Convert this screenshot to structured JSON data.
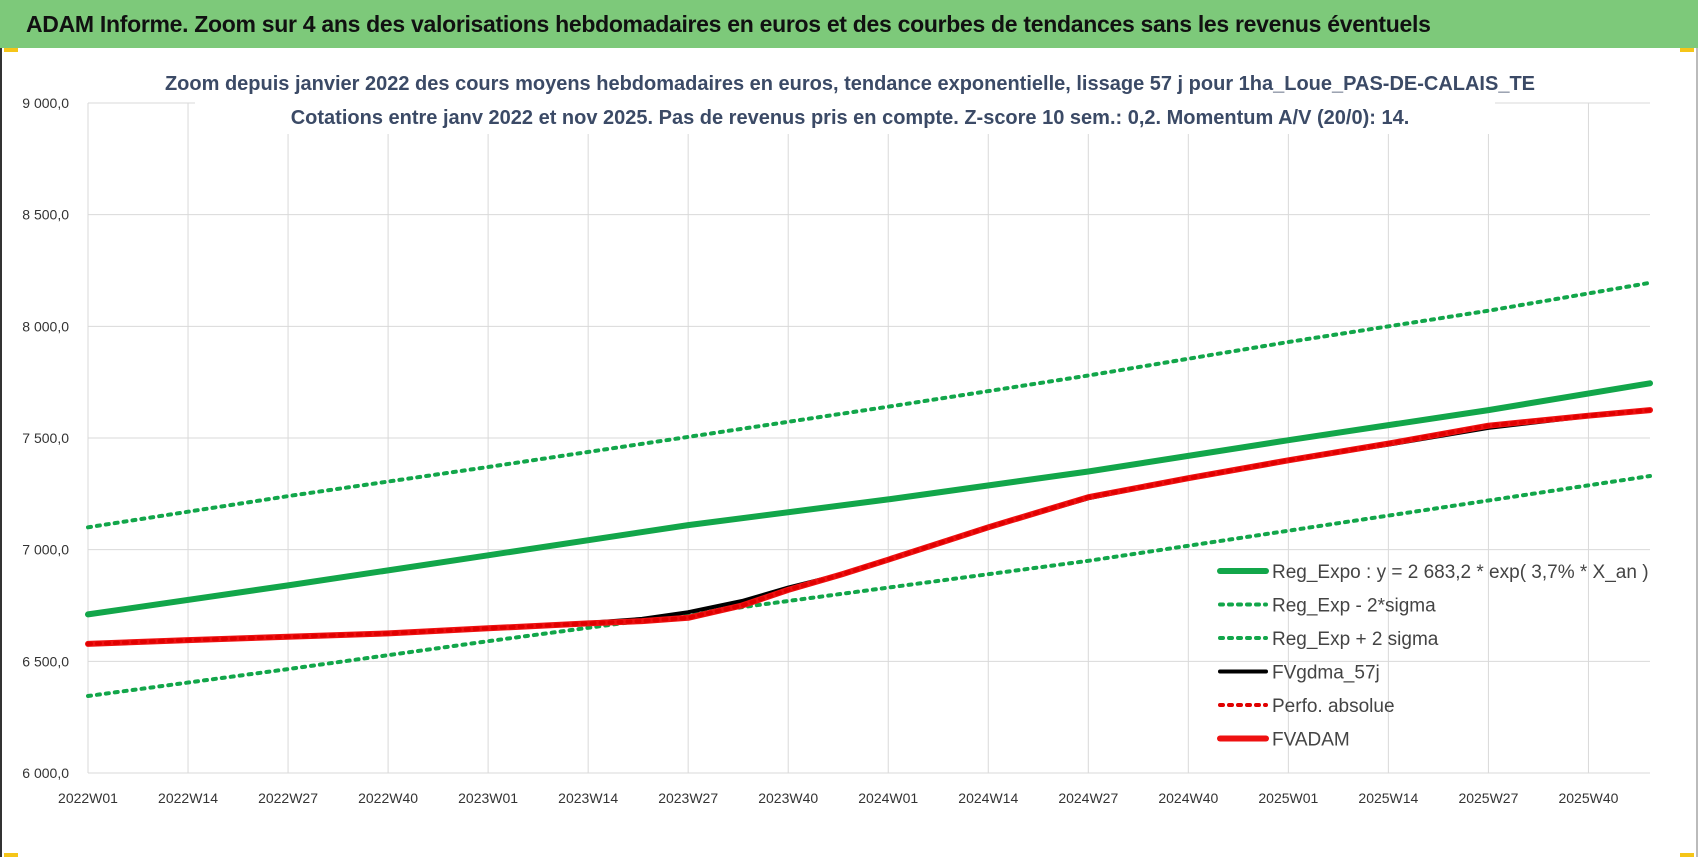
{
  "banner": {
    "title": "ADAM Informe. Zoom sur 4 ans des valorisations hebdomadaires en euros et des courbes de tendances sans les revenus éventuels"
  },
  "colors": {
    "banner_bg": "#7dc97a",
    "trend": "#12a64a",
    "trend_band": "#12a64a",
    "fvgdma": "#000000",
    "perfo": "#e00000",
    "fvadam": "#ee1111",
    "grid": "#d9d9d9"
  },
  "chart_data": {
    "type": "line",
    "title_line1": "Zoom depuis janvier 2022 des cours moyens hebdomadaires en euros, tendance exponentielle, lissage 57 j pour 1ha_Loue_PAS-DE-CALAIS_TE",
    "title_line2": "Cotations entre janv 2022 et nov 2025. Pas de revenus pris en compte. Z-score 10 sem.: 0,2. Momentum A/V (20/0): 14.",
    "x_tick_labels": [
      "2022W01",
      "2022W14",
      "2022W27",
      "2022W40",
      "2023W01",
      "2023W14",
      "2023W27",
      "2023W40",
      "2024W01",
      "2024W14",
      "2024W27",
      "2024W40",
      "2025W01",
      "2025W14",
      "2025W27",
      "2025W40"
    ],
    "x_tick_weeks": [
      0,
      13,
      26,
      39,
      52,
      65,
      78,
      91,
      104,
      117,
      130,
      143,
      156,
      169,
      182,
      195
    ],
    "x_range_weeks": [
      0,
      203
    ],
    "ylim": [
      6000,
      9000
    ],
    "y_ticks": [
      6000,
      6500,
      7000,
      7500,
      8000,
      8500,
      9000
    ],
    "y_tick_labels": [
      "6 000,0",
      "6 500,0",
      "7 000,0",
      "7 500,0",
      "8 000,0",
      "8 500,0",
      "9 000,0"
    ],
    "grid": true,
    "legend_position": "bottom-right",
    "series": [
      {
        "name": "Reg_Expo : y = 2 683,2 * exp( 3,7% *  X_an )",
        "style": "solid-thick",
        "color": "#12a64a",
        "x": [
          0,
          26,
          52,
          78,
          104,
          130,
          156,
          182,
          203
        ],
        "y": [
          6710,
          6840,
          6975,
          7110,
          7225,
          7350,
          7490,
          7625,
          7745
        ]
      },
      {
        "name": "Reg_Exp - 2*sigma",
        "style": "dotted",
        "color": "#12a64a",
        "x": [
          0,
          26,
          52,
          78,
          104,
          130,
          156,
          182,
          203
        ],
        "y": [
          6345,
          6465,
          6590,
          6710,
          6830,
          6950,
          7085,
          7220,
          7330
        ]
      },
      {
        "name": "Reg_Exp + 2 sigma",
        "style": "dotted",
        "color": "#12a64a",
        "x": [
          0,
          26,
          52,
          78,
          104,
          130,
          156,
          182,
          203
        ],
        "y": [
          7100,
          7240,
          7370,
          7505,
          7640,
          7780,
          7930,
          8070,
          8195
        ]
      },
      {
        "name": "FVgdma_57j",
        "style": "solid",
        "color": "#000000",
        "x": [
          0,
          13,
          26,
          39,
          52,
          65,
          72,
          78,
          85,
          91,
          98,
          104,
          117,
          130,
          143,
          156,
          169,
          182,
          195,
          203
        ],
        "y": [
          6578,
          6595,
          6610,
          6625,
          6648,
          6672,
          6690,
          6720,
          6770,
          6830,
          6890,
          6955,
          7100,
          7230,
          7320,
          7400,
          7470,
          7545,
          7598,
          7622
        ]
      },
      {
        "name": "Perfo. absolue",
        "style": "dotted",
        "color": "#e00000",
        "x": [
          0,
          13,
          26,
          39,
          52,
          65,
          72,
          78,
          85,
          91,
          98,
          104,
          117,
          130,
          143,
          156,
          169,
          182,
          195,
          203
        ],
        "y": [
          6578,
          6595,
          6610,
          6625,
          6648,
          6670,
          6680,
          6695,
          6750,
          6820,
          6890,
          6955,
          7100,
          7235,
          7320,
          7400,
          7475,
          7555,
          7600,
          7625
        ]
      },
      {
        "name": "FVADAM",
        "style": "solid-thick",
        "color": "#ee1111",
        "x": [
          0,
          13,
          26,
          39,
          52,
          65,
          72,
          78,
          85,
          91,
          98,
          104,
          117,
          130,
          143,
          156,
          169,
          182,
          195,
          203
        ],
        "y": [
          6578,
          6595,
          6610,
          6625,
          6648,
          6670,
          6680,
          6695,
          6750,
          6820,
          6890,
          6955,
          7100,
          7235,
          7320,
          7400,
          7475,
          7555,
          7600,
          7625
        ]
      }
    ]
  }
}
